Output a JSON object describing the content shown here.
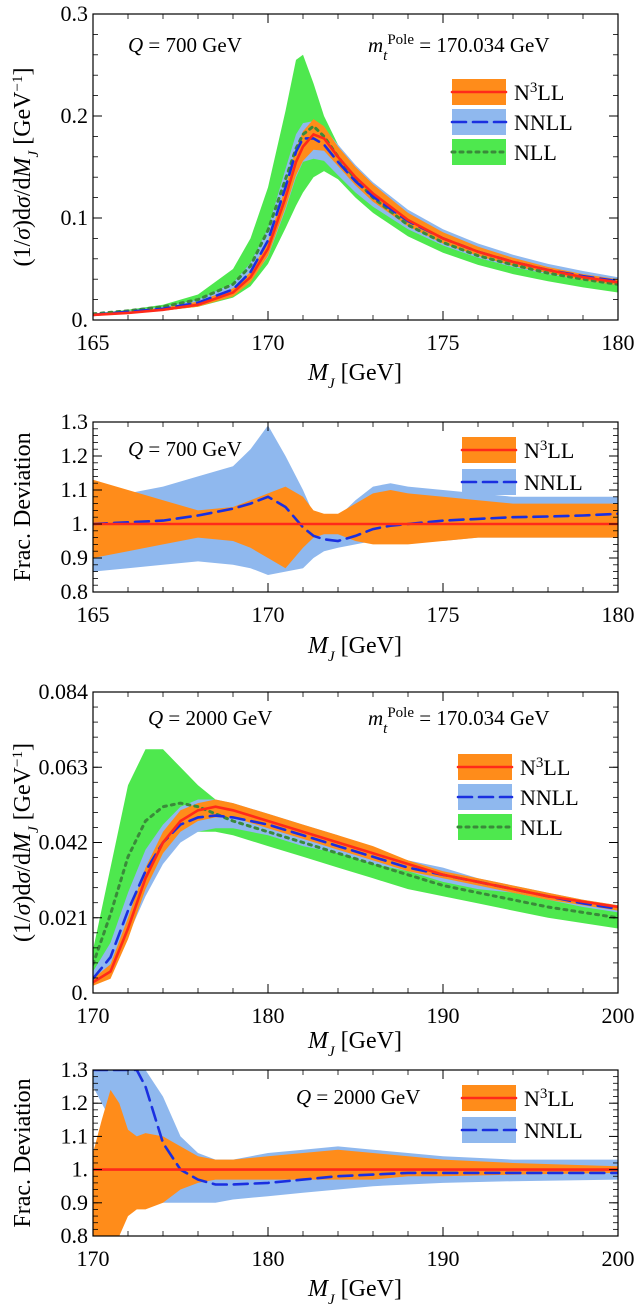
{
  "chart_data": [
    {
      "id": "p1",
      "type": "area",
      "annotation_left": "Q = 700 GeV",
      "annotation_right": "m_t^Pole = 170.034 GeV",
      "xlabel": "M_J [GeV]",
      "ylabel": "(1/σ)dσ/dM_J [GeV⁻¹]",
      "xlim": [
        165,
        180
      ],
      "ylim": [
        0,
        0.3
      ],
      "xticks": [
        "165",
        "170",
        "175",
        "180"
      ],
      "yticks": [
        "0.",
        "0.1",
        "0.2",
        "0.3"
      ],
      "legend_position": "right",
      "x": [
        165,
        166,
        167,
        168,
        169,
        169.5,
        170,
        170.5,
        170.8,
        171,
        171.3,
        171.6,
        172,
        172.5,
        173,
        174,
        175,
        176,
        177,
        178,
        179,
        180
      ],
      "series": [
        {
          "name": "N³LL",
          "color": "#ff2a1a",
          "band_color": "#ff8c1a",
          "center": [
            0.005,
            0.007,
            0.01,
            0.015,
            0.027,
            0.042,
            0.07,
            0.12,
            0.155,
            0.17,
            0.182,
            0.178,
            0.16,
            0.14,
            0.124,
            0.098,
            0.08,
            0.067,
            0.057,
            0.049,
            0.042,
            0.037
          ],
          "upper": [
            0.006,
            0.008,
            0.012,
            0.018,
            0.031,
            0.047,
            0.077,
            0.13,
            0.168,
            0.185,
            0.197,
            0.19,
            0.17,
            0.15,
            0.133,
            0.105,
            0.086,
            0.072,
            0.061,
            0.052,
            0.045,
            0.04
          ],
          "lower": [
            0.004,
            0.006,
            0.009,
            0.013,
            0.023,
            0.037,
            0.063,
            0.11,
            0.142,
            0.156,
            0.167,
            0.166,
            0.151,
            0.132,
            0.116,
            0.092,
            0.075,
            0.063,
            0.053,
            0.046,
            0.039,
            0.034
          ]
        },
        {
          "name": "NNLL",
          "color": "#1a2fe0",
          "band_color": "#8fb8ee",
          "center": [
            0.005,
            0.008,
            0.011,
            0.017,
            0.03,
            0.047,
            0.078,
            0.13,
            0.165,
            0.178,
            0.178,
            0.172,
            0.155,
            0.136,
            0.121,
            0.097,
            0.08,
            0.067,
            0.057,
            0.049,
            0.043,
            0.038
          ],
          "upper": [
            0.006,
            0.009,
            0.013,
            0.02,
            0.036,
            0.056,
            0.09,
            0.148,
            0.182,
            0.193,
            0.195,
            0.188,
            0.172,
            0.152,
            0.135,
            0.108,
            0.089,
            0.075,
            0.064,
            0.055,
            0.048,
            0.042
          ],
          "lower": [
            0.004,
            0.006,
            0.009,
            0.014,
            0.024,
            0.038,
            0.062,
            0.108,
            0.14,
            0.155,
            0.158,
            0.156,
            0.142,
            0.125,
            0.111,
            0.089,
            0.073,
            0.061,
            0.052,
            0.045,
            0.039,
            0.034
          ]
        },
        {
          "name": "NLL",
          "color": "#3a8a3a",
          "band_color": "#4ee84e",
          "center": [
            0.006,
            0.009,
            0.013,
            0.02,
            0.035,
            0.053,
            0.088,
            0.138,
            0.168,
            0.182,
            0.19,
            0.18,
            0.16,
            0.138,
            0.12,
            0.093,
            0.076,
            0.063,
            0.054,
            0.046,
            0.04,
            0.035
          ],
          "upper": [
            0.006,
            0.01,
            0.015,
            0.025,
            0.05,
            0.08,
            0.13,
            0.205,
            0.255,
            0.26,
            0.232,
            0.2,
            0.172,
            0.148,
            0.13,
            0.102,
            0.083,
            0.07,
            0.06,
            0.051,
            0.045,
            0.04
          ],
          "lower": [
            0.004,
            0.006,
            0.009,
            0.013,
            0.022,
            0.033,
            0.055,
            0.09,
            0.112,
            0.125,
            0.14,
            0.146,
            0.138,
            0.12,
            0.105,
            0.082,
            0.066,
            0.054,
            0.045,
            0.038,
            0.032,
            0.027
          ]
        }
      ]
    },
    {
      "id": "p2",
      "type": "area",
      "annotation_left": "Q = 700 GeV",
      "xlabel": "M_J [GeV]",
      "ylabel": "Frac. Deviation",
      "xlim": [
        165,
        180
      ],
      "ylim": [
        0.8,
        1.3
      ],
      "xticks": [
        "165",
        "170",
        "175",
        "180"
      ],
      "yticks": [
        "0.8",
        "0.9",
        "1.",
        "1.1",
        "1.2",
        "1.3"
      ],
      "legend_position": "top-right",
      "x": [
        165,
        166,
        167,
        168,
        169,
        169.5,
        170,
        170.5,
        171,
        171.3,
        171.6,
        172,
        172.5,
        173,
        173.5,
        174,
        175,
        176,
        177,
        178,
        179,
        180
      ],
      "series": [
        {
          "name": "N³LL",
          "color": "#ff2a1a",
          "band_color": "#ff8c1a",
          "center": [
            1,
            1,
            1,
            1,
            1,
            1,
            1,
            1,
            1,
            1,
            1,
            1,
            1,
            1,
            1,
            1,
            1,
            1,
            1,
            1,
            1,
            1
          ],
          "upper": [
            1.13,
            1.1,
            1.07,
            1.04,
            1.05,
            1.07,
            1.09,
            1.11,
            1.08,
            1.04,
            1.03,
            1.03,
            1.06,
            1.09,
            1.1,
            1.09,
            1.08,
            1.07,
            1.06,
            1.06,
            1.06,
            1.06
          ],
          "lower": [
            0.9,
            0.92,
            0.94,
            0.96,
            0.95,
            0.93,
            0.9,
            0.87,
            0.93,
            0.96,
            0.97,
            0.97,
            0.95,
            0.94,
            0.94,
            0.94,
            0.95,
            0.96,
            0.96,
            0.96,
            0.96,
            0.96
          ]
        },
        {
          "name": "NNLL",
          "color": "#1a2fe0",
          "band_color": "#8fb8ee",
          "center": [
            1,
            1.005,
            1.01,
            1.025,
            1.045,
            1.06,
            1.08,
            1.05,
            0.99,
            0.965,
            0.955,
            0.95,
            0.965,
            0.985,
            0.995,
            1.0,
            1.01,
            1.015,
            1.02,
            1.022,
            1.025,
            1.03
          ],
          "upper": [
            1.08,
            1.09,
            1.11,
            1.14,
            1.17,
            1.22,
            1.29,
            1.2,
            1.1,
            1.03,
            1.0,
            1.02,
            1.07,
            1.11,
            1.12,
            1.11,
            1.1,
            1.09,
            1.08,
            1.08,
            1.08,
            1.08
          ],
          "lower": [
            0.86,
            0.87,
            0.88,
            0.89,
            0.88,
            0.87,
            0.85,
            0.86,
            0.87,
            0.9,
            0.92,
            0.93,
            0.94,
            0.95,
            0.95,
            0.95,
            0.95,
            0.96,
            0.96,
            0.96,
            0.96,
            0.96
          ]
        }
      ]
    },
    {
      "id": "p3",
      "type": "area",
      "annotation_left": "Q = 2000 GeV",
      "annotation_right": "m_t^Pole = 170.034 GeV",
      "xlabel": "M_J [GeV]",
      "ylabel": "(1/σ)dσ/dM_J [GeV⁻¹]",
      "xlim": [
        170,
        200
      ],
      "ylim": [
        0,
        0.084
      ],
      "xticks": [
        "170",
        "180",
        "190",
        "200"
      ],
      "yticks": [
        "0.",
        "0.021",
        "0.042",
        "0.063",
        "0.084"
      ],
      "legend_position": "right",
      "x": [
        170,
        171,
        172,
        173,
        174,
        175,
        176,
        177,
        178,
        180,
        182,
        184,
        186,
        188,
        190,
        192,
        194,
        196,
        198,
        200
      ],
      "series": [
        {
          "name": "N³LL",
          "color": "#ff2a1a",
          "band_color": "#ff8c1a",
          "center": [
            0.003,
            0.006,
            0.018,
            0.032,
            0.042,
            0.048,
            0.051,
            0.052,
            0.051,
            0.048,
            0.045,
            0.042,
            0.039,
            0.036,
            0.033,
            0.031,
            0.029,
            0.027,
            0.0255,
            0.024
          ],
          "upper": [
            0.004,
            0.008,
            0.021,
            0.035,
            0.045,
            0.051,
            0.053,
            0.054,
            0.053,
            0.05,
            0.047,
            0.044,
            0.041,
            0.037,
            0.034,
            0.032,
            0.03,
            0.028,
            0.026,
            0.0245
          ],
          "lower": [
            0.002,
            0.004,
            0.015,
            0.029,
            0.039,
            0.045,
            0.048,
            0.049,
            0.049,
            0.046,
            0.043,
            0.04,
            0.037,
            0.034,
            0.032,
            0.03,
            0.028,
            0.026,
            0.0245,
            0.023
          ]
        },
        {
          "name": "NNLL",
          "color": "#1a2fe0",
          "band_color": "#8fb8ee",
          "center": [
            0.004,
            0.01,
            0.023,
            0.034,
            0.042,
            0.047,
            0.049,
            0.0495,
            0.049,
            0.047,
            0.044,
            0.041,
            0.038,
            0.035,
            0.033,
            0.031,
            0.029,
            0.027,
            0.025,
            0.0235
          ],
          "upper": [
            0.006,
            0.014,
            0.028,
            0.04,
            0.047,
            0.052,
            0.054,
            0.054,
            0.053,
            0.05,
            0.047,
            0.044,
            0.04,
            0.037,
            0.035,
            0.032,
            0.03,
            0.028,
            0.026,
            0.0245
          ],
          "lower": [
            0.002,
            0.005,
            0.016,
            0.027,
            0.036,
            0.042,
            0.045,
            0.046,
            0.046,
            0.044,
            0.041,
            0.039,
            0.036,
            0.034,
            0.031,
            0.029,
            0.028,
            0.026,
            0.024,
            0.0225
          ]
        },
        {
          "name": "NLL",
          "color": "#3a8a3a",
          "band_color": "#4ee84e",
          "center": [
            0.008,
            0.022,
            0.038,
            0.048,
            0.052,
            0.053,
            0.052,
            0.05,
            0.048,
            0.045,
            0.042,
            0.039,
            0.036,
            0.033,
            0.03,
            0.028,
            0.026,
            0.024,
            0.0225,
            0.021
          ],
          "upper": [
            0.012,
            0.035,
            0.058,
            0.068,
            0.068,
            0.063,
            0.058,
            0.054,
            0.052,
            0.049,
            0.046,
            0.043,
            0.04,
            0.037,
            0.034,
            0.031,
            0.029,
            0.027,
            0.025,
            0.0235
          ],
          "lower": [
            0.004,
            0.012,
            0.025,
            0.035,
            0.041,
            0.044,
            0.045,
            0.045,
            0.044,
            0.041,
            0.038,
            0.035,
            0.032,
            0.029,
            0.027,
            0.025,
            0.023,
            0.021,
            0.0195,
            0.018
          ]
        }
      ]
    },
    {
      "id": "p4",
      "type": "area",
      "annotation_left": "Q = 2000 GeV",
      "xlabel": "M_J [GeV]",
      "ylabel": "Frac. Deviation",
      "xlim": [
        170,
        200
      ],
      "ylim": [
        0.8,
        1.3
      ],
      "xticks": [
        "170",
        "180",
        "190",
        "200"
      ],
      "yticks": [
        "0.8",
        "0.9",
        "1.",
        "1.1",
        "1.2",
        "1.3"
      ],
      "legend_position": "top-right",
      "x": [
        170,
        170.5,
        171,
        171.5,
        172,
        172.5,
        173,
        174,
        175,
        176,
        177,
        178,
        180,
        182,
        184,
        186,
        188,
        190,
        194,
        200
      ],
      "series": [
        {
          "name": "N³LL",
          "color": "#ff2a1a",
          "band_color": "#ff8c1a",
          "center": [
            1,
            1,
            1,
            1,
            1,
            1,
            1,
            1,
            1,
            1,
            1,
            1,
            1,
            1,
            1,
            1,
            1,
            1,
            1,
            1
          ],
          "upper": [
            1.05,
            1.15,
            1.24,
            1.2,
            1.12,
            1.1,
            1.11,
            1.1,
            1.07,
            1.04,
            1.03,
            1.03,
            1.04,
            1.05,
            1.06,
            1.05,
            1.04,
            1.03,
            1.02,
            1.01
          ],
          "lower": [
            0.8,
            0.8,
            0.8,
            0.8,
            0.86,
            0.88,
            0.88,
            0.9,
            0.94,
            0.96,
            0.97,
            0.97,
            0.97,
            0.97,
            0.97,
            0.97,
            0.98,
            0.98,
            0.985,
            0.99
          ]
        },
        {
          "name": "NNLL",
          "color": "#1a2fe0",
          "band_color": "#8fb8ee",
          "center": [
            1.3,
            1.3,
            1.3,
            1.3,
            1.3,
            1.3,
            1.25,
            1.08,
            1.0,
            0.97,
            0.955,
            0.955,
            0.96,
            0.97,
            0.98,
            0.985,
            0.99,
            0.99,
            0.99,
            0.99
          ],
          "upper": [
            1.3,
            1.3,
            1.3,
            1.3,
            1.3,
            1.3,
            1.3,
            1.22,
            1.1,
            1.05,
            1.03,
            1.03,
            1.05,
            1.06,
            1.07,
            1.06,
            1.05,
            1.04,
            1.03,
            1.03
          ],
          "lower": [
            1.25,
            1.2,
            1.15,
            1.1,
            1.05,
            1.0,
            0.95,
            0.9,
            0.9,
            0.9,
            0.9,
            0.91,
            0.92,
            0.93,
            0.94,
            0.95,
            0.955,
            0.96,
            0.965,
            0.97
          ]
        }
      ]
    }
  ]
}
